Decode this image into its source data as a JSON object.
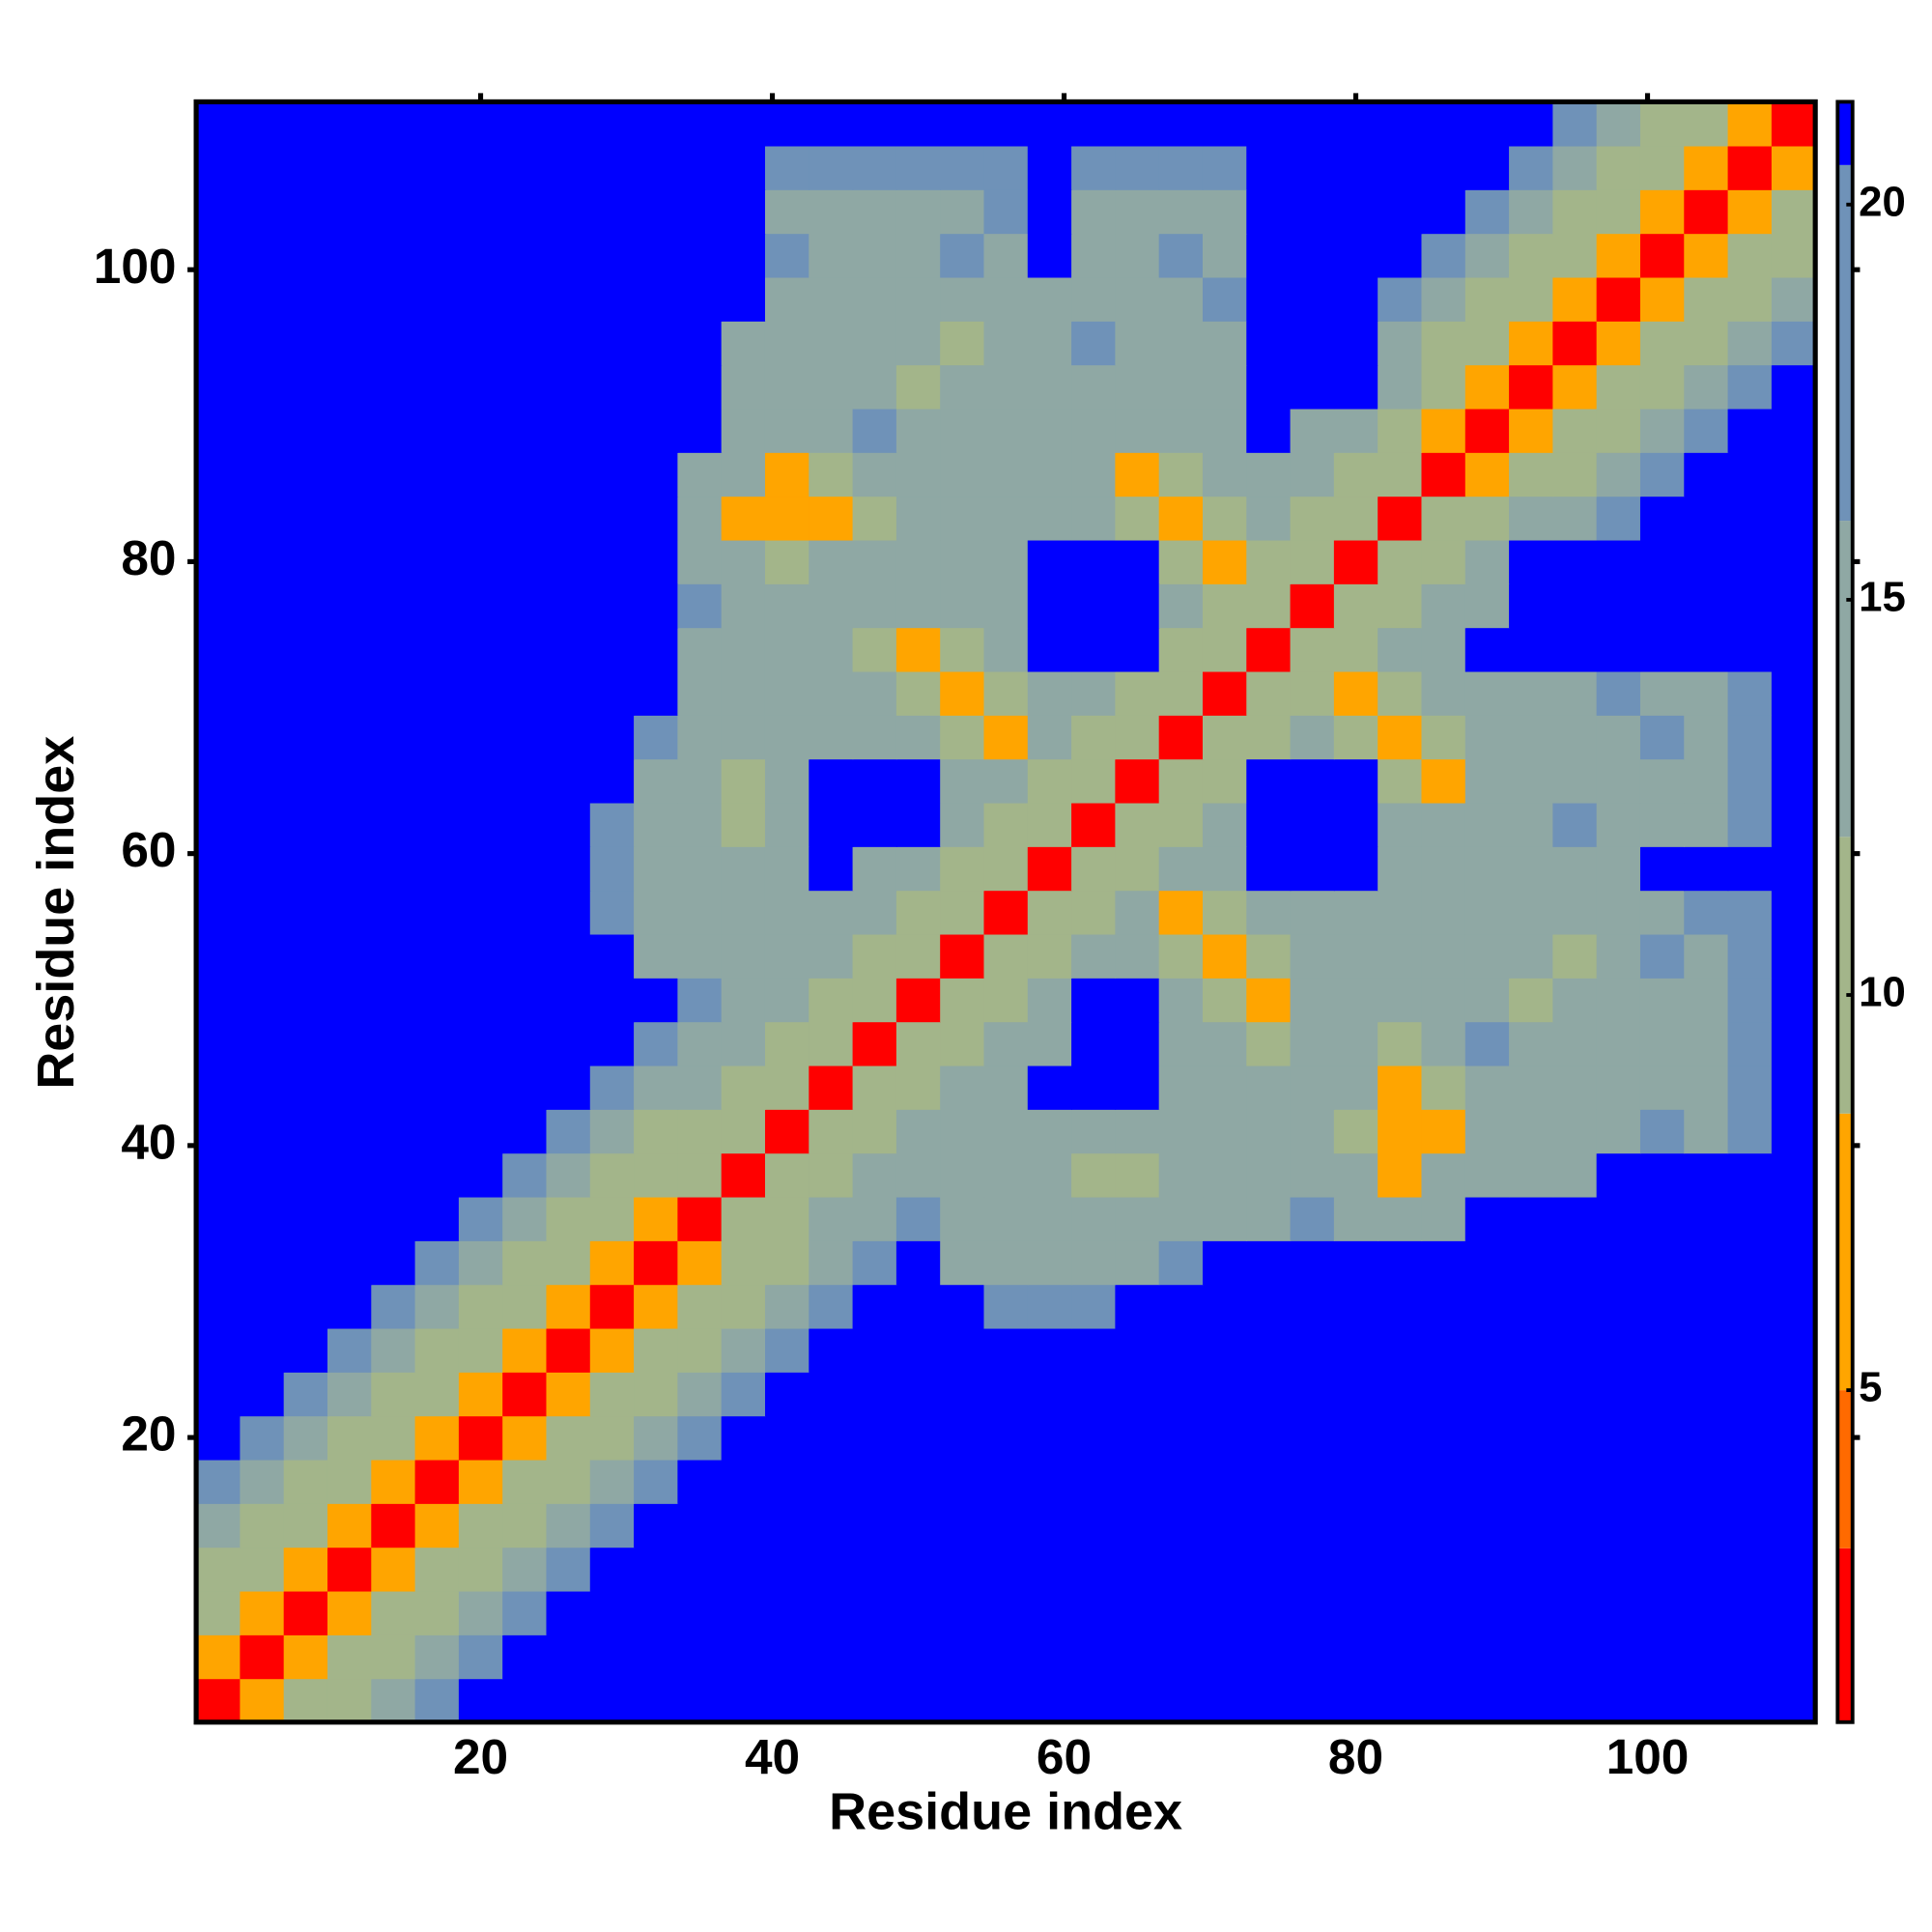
{
  "chart_data": {
    "type": "heatmap",
    "xlabel": "Residue index",
    "ylabel": "Residue index",
    "xlim": [
      0.5,
      111.5
    ],
    "ylim": [
      0.5,
      111.5
    ],
    "xticks": [
      20,
      40,
      60,
      80,
      100
    ],
    "yticks": [
      20,
      40,
      60,
      80,
      100
    ],
    "zlim": [
      0.8,
      21.3
    ],
    "zticks": [
      5,
      10,
      15,
      20
    ],
    "colorscale": [
      {
        "to": 3,
        "color": "#ff0000"
      },
      {
        "to": 5,
        "color": "#ff6a00"
      },
      {
        "to": 8.5,
        "color": "#ffa500"
      },
      {
        "to": 12,
        "color": "#a3b58a"
      },
      {
        "to": 16,
        "color": "#8fa8a4"
      },
      {
        "to": 20.5,
        "color": "#6f92b8"
      },
      {
        "to": 21.3,
        "color": "#0000ff"
      }
    ],
    "x": [
      2,
      5,
      8,
      11,
      14,
      17,
      20,
      23,
      26,
      29,
      32,
      35,
      38,
      41,
      44,
      47,
      50,
      53,
      56,
      59,
      62,
      65,
      68,
      71,
      74,
      77,
      80,
      83,
      86,
      89,
      92,
      95,
      98,
      101,
      104,
      107,
      110
    ],
    "y": [
      2,
      5,
      8,
      11,
      14,
      17,
      20,
      23,
      26,
      29,
      32,
      35,
      38,
      41,
      44,
      47,
      50,
      53,
      56,
      59,
      62,
      65,
      68,
      71,
      74,
      77,
      80,
      83,
      86,
      89,
      92,
      95,
      98,
      101,
      104,
      107,
      110
    ],
    "z": [
      [
        2,
        6,
        10,
        12,
        15,
        18,
        21,
        21,
        21,
        21,
        21,
        21,
        21,
        21,
        21,
        21,
        21,
        21,
        21,
        21,
        21,
        21,
        21,
        21,
        21,
        21,
        21,
        21,
        21,
        21,
        21,
        21,
        21,
        21,
        21,
        21,
        21
      ],
      [
        6,
        2,
        6,
        10,
        12,
        15,
        18,
        21,
        21,
        21,
        21,
        21,
        21,
        21,
        21,
        21,
        21,
        21,
        21,
        21,
        21,
        21,
        21,
        21,
        21,
        21,
        21,
        21,
        21,
        21,
        21,
        21,
        21,
        21,
        21,
        21,
        21
      ],
      [
        10,
        6,
        2,
        6,
        10,
        12,
        15,
        18,
        21,
        21,
        21,
        21,
        21,
        21,
        21,
        21,
        21,
        21,
        21,
        21,
        21,
        21,
        21,
        21,
        21,
        21,
        21,
        21,
        21,
        21,
        21,
        21,
        21,
        21,
        21,
        21,
        21
      ],
      [
        12,
        10,
        6,
        2,
        6,
        10,
        12,
        15,
        18,
        21,
        21,
        21,
        21,
        21,
        21,
        21,
        21,
        21,
        21,
        21,
        21,
        21,
        21,
        21,
        21,
        21,
        21,
        21,
        21,
        21,
        21,
        21,
        21,
        21,
        21,
        21,
        21
      ],
      [
        15,
        12,
        10,
        6,
        2,
        6,
        10,
        12,
        15,
        18,
        21,
        21,
        21,
        21,
        21,
        21,
        21,
        21,
        21,
        21,
        21,
        21,
        21,
        21,
        21,
        21,
        21,
        21,
        21,
        21,
        21,
        21,
        21,
        21,
        21,
        21,
        21
      ],
      [
        18,
        15,
        12,
        10,
        6,
        2,
        6,
        10,
        12,
        15,
        18,
        21,
        21,
        21,
        21,
        21,
        21,
        21,
        21,
        21,
        21,
        21,
        21,
        21,
        21,
        21,
        21,
        21,
        21,
        21,
        21,
        21,
        21,
        21,
        21,
        21,
        21
      ],
      [
        21,
        18,
        15,
        12,
        10,
        6,
        2,
        6,
        10,
        12,
        15,
        18,
        21,
        21,
        21,
        21,
        21,
        21,
        21,
        21,
        21,
        21,
        21,
        21,
        21,
        21,
        21,
        21,
        21,
        21,
        21,
        21,
        21,
        21,
        21,
        21,
        21
      ],
      [
        21,
        21,
        18,
        15,
        12,
        10,
        6,
        2,
        6,
        10,
        12,
        15,
        18,
        21,
        21,
        21,
        21,
        21,
        21,
        21,
        21,
        21,
        21,
        21,
        21,
        21,
        21,
        21,
        21,
        21,
        21,
        21,
        21,
        21,
        21,
        21,
        21
      ],
      [
        21,
        21,
        21,
        18,
        15,
        12,
        10,
        6,
        2,
        6,
        10,
        12,
        15,
        18,
        21,
        21,
        21,
        21,
        21,
        21,
        21,
        21,
        21,
        21,
        21,
        21,
        21,
        21,
        21,
        21,
        21,
        21,
        21,
        21,
        21,
        21,
        21
      ],
      [
        21,
        21,
        21,
        21,
        18,
        15,
        12,
        10,
        6,
        2,
        6,
        10,
        12,
        15,
        18,
        21,
        21,
        21,
        18,
        18,
        18,
        21,
        21,
        21,
        21,
        21,
        21,
        21,
        21,
        21,
        21,
        21,
        21,
        21,
        21,
        21,
        21
      ],
      [
        21,
        21,
        21,
        21,
        21,
        18,
        15,
        12,
        10,
        6,
        2,
        6,
        10,
        12,
        15,
        18,
        21,
        15,
        15,
        15,
        15,
        15,
        18,
        21,
        21,
        21,
        21,
        21,
        21,
        21,
        21,
        21,
        21,
        21,
        21,
        21,
        21
      ],
      [
        21,
        21,
        21,
        21,
        21,
        21,
        18,
        15,
        12,
        10,
        6,
        2,
        9,
        12,
        14,
        16,
        18,
        15,
        15,
        15,
        15,
        15,
        15,
        15,
        15,
        18,
        15,
        15,
        15,
        21,
        21,
        21,
        21,
        21,
        21,
        21,
        21
      ],
      [
        21,
        21,
        21,
        21,
        21,
        21,
        21,
        18,
        15,
        12,
        10,
        9,
        2,
        9,
        12,
        14,
        16,
        15,
        15,
        15,
        9,
        9,
        15,
        15,
        15,
        15,
        15,
        7,
        15,
        15,
        15,
        15,
        21,
        21,
        21,
        21,
        21
      ],
      [
        21,
        21,
        21,
        21,
        21,
        21,
        21,
        21,
        18,
        15,
        12,
        12,
        9,
        2,
        9,
        12,
        14,
        15,
        15,
        15,
        15,
        15,
        15,
        15,
        15,
        15,
        11,
        7,
        7,
        15,
        15,
        15,
        15,
        18,
        15,
        18,
        21
      ],
      [
        21,
        21,
        21,
        21,
        21,
        21,
        21,
        21,
        21,
        18,
        15,
        14,
        12,
        9,
        2,
        9,
        12,
        14,
        15,
        21,
        21,
        21,
        15,
        15,
        15,
        15,
        15,
        7,
        11,
        15,
        15,
        15,
        15,
        15,
        15,
        18,
        21
      ],
      [
        21,
        21,
        21,
        21,
        21,
        21,
        21,
        21,
        21,
        21,
        18,
        16,
        14,
        12,
        9,
        2,
        9,
        12,
        14,
        15,
        21,
        21,
        15,
        15,
        11,
        15,
        15,
        11,
        15,
        18,
        15,
        15,
        15,
        15,
        15,
        18,
        21
      ],
      [
        21,
        21,
        21,
        21,
        21,
        21,
        21,
        21,
        21,
        21,
        21,
        18,
        16,
        14,
        12,
        9,
        2,
        9,
        12,
        14,
        21,
        21,
        15,
        11,
        7,
        15,
        15,
        15,
        15,
        15,
        9,
        15,
        15,
        15,
        15,
        18,
        21
      ],
      [
        21,
        21,
        21,
        21,
        21,
        21,
        21,
        21,
        21,
        21,
        15,
        15,
        15,
        15,
        14,
        12,
        9,
        2,
        9,
        12,
        14,
        15,
        11,
        7,
        11,
        15,
        15,
        15,
        15,
        15,
        15,
        9,
        15,
        18,
        15,
        18,
        21
      ],
      [
        21,
        21,
        21,
        21,
        21,
        21,
        21,
        21,
        21,
        18,
        15,
        15,
        15,
        15,
        15,
        14,
        12,
        9,
        2,
        9,
        12,
        14,
        7,
        11,
        15,
        15,
        15,
        15,
        15,
        15,
        15,
        15,
        15,
        15,
        18,
        18,
        21
      ],
      [
        21,
        21,
        21,
        21,
        21,
        21,
        21,
        21,
        21,
        18,
        15,
        15,
        15,
        15,
        21,
        15,
        14,
        12,
        9,
        2,
        9,
        12,
        14,
        15,
        21,
        21,
        21,
        15,
        15,
        15,
        15,
        15,
        15,
        21,
        21,
        21,
        21
      ],
      [
        21,
        21,
        21,
        21,
        21,
        21,
        21,
        21,
        21,
        18,
        15,
        15,
        9,
        15,
        21,
        21,
        21,
        14,
        12,
        9,
        2,
        9,
        12,
        14,
        21,
        21,
        21,
        15,
        15,
        15,
        15,
        18,
        15,
        15,
        15,
        18,
        21
      ],
      [
        21,
        21,
        21,
        21,
        21,
        21,
        21,
        21,
        21,
        21,
        15,
        15,
        9,
        15,
        21,
        21,
        21,
        15,
        14,
        12,
        9,
        2,
        9,
        12,
        21,
        21,
        21,
        11,
        7,
        15,
        15,
        15,
        15,
        15,
        15,
        18,
        21
      ],
      [
        21,
        21,
        21,
        21,
        21,
        21,
        21,
        21,
        21,
        21,
        18,
        15,
        15,
        15,
        15,
        15,
        15,
        11,
        7,
        14,
        12,
        9,
        2,
        9,
        12,
        14,
        11,
        7,
        11,
        15,
        15,
        15,
        15,
        18,
        15,
        18,
        21
      ],
      [
        21,
        21,
        21,
        21,
        21,
        21,
        21,
        21,
        21,
        21,
        21,
        15,
        15,
        15,
        15,
        15,
        11,
        7,
        11,
        15,
        14,
        12,
        9,
        2,
        9,
        12,
        7,
        11,
        15,
        15,
        15,
        15,
        18,
        15,
        15,
        18,
        21
      ],
      [
        21,
        21,
        21,
        21,
        21,
        21,
        21,
        21,
        21,
        21,
        21,
        15,
        15,
        15,
        15,
        11,
        7,
        11,
        15,
        21,
        21,
        21,
        12,
        9,
        2,
        9,
        12,
        14,
        15,
        21,
        21,
        21,
        21,
        21,
        21,
        21,
        21
      ],
      [
        21,
        21,
        21,
        21,
        21,
        21,
        21,
        21,
        21,
        21,
        21,
        18,
        15,
        15,
        15,
        15,
        15,
        15,
        15,
        21,
        21,
        21,
        14,
        12,
        9,
        2,
        9,
        12,
        14,
        16,
        21,
        21,
        21,
        21,
        21,
        21,
        21
      ],
      [
        21,
        21,
        21,
        21,
        21,
        21,
        21,
        21,
        21,
        21,
        21,
        15,
        15,
        11,
        15,
        15,
        15,
        15,
        15,
        21,
        21,
        21,
        11,
        7,
        12,
        9,
        2,
        9,
        12,
        14,
        21,
        21,
        21,
        21,
        21,
        21,
        21
      ],
      [
        21,
        21,
        21,
        21,
        21,
        21,
        21,
        21,
        21,
        21,
        21,
        15,
        7,
        7,
        7,
        11,
        15,
        15,
        15,
        15,
        15,
        11,
        7,
        11,
        14,
        12,
        9,
        2,
        9,
        12,
        14,
        16,
        18,
        21,
        21,
        21,
        21
      ],
      [
        21,
        21,
        21,
        21,
        21,
        21,
        21,
        21,
        21,
        21,
        21,
        15,
        15,
        7,
        11,
        15,
        15,
        15,
        15,
        15,
        15,
        7,
        11,
        15,
        15,
        14,
        12,
        9,
        2,
        6,
        10,
        12,
        15,
        18,
        21,
        21,
        21
      ],
      [
        21,
        21,
        21,
        21,
        21,
        21,
        21,
        21,
        21,
        21,
        21,
        21,
        15,
        15,
        15,
        18,
        15,
        15,
        15,
        15,
        15,
        15,
        15,
        15,
        21,
        16,
        14,
        12,
        6,
        2,
        6,
        10,
        12,
        15,
        18,
        21,
        21
      ],
      [
        21,
        21,
        21,
        21,
        21,
        21,
        21,
        21,
        21,
        21,
        21,
        21,
        15,
        15,
        15,
        15,
        9,
        15,
        15,
        15,
        15,
        15,
        15,
        15,
        21,
        21,
        21,
        14,
        10,
        6,
        2,
        6,
        10,
        12,
        15,
        18,
        21
      ],
      [
        21,
        21,
        21,
        21,
        21,
        21,
        21,
        21,
        21,
        21,
        21,
        21,
        15,
        15,
        15,
        15,
        15,
        9,
        15,
        15,
        18,
        15,
        15,
        15,
        21,
        21,
        21,
        16,
        12,
        10,
        6,
        2,
        6,
        10,
        12,
        15,
        18
      ],
      [
        21,
        21,
        21,
        21,
        21,
        21,
        21,
        21,
        21,
        21,
        21,
        21,
        21,
        15,
        15,
        15,
        15,
        15,
        15,
        15,
        15,
        15,
        15,
        18,
        21,
        21,
        21,
        18,
        15,
        12,
        10,
        6,
        2,
        6,
        10,
        12,
        15
      ],
      [
        21,
        21,
        21,
        21,
        21,
        21,
        21,
        21,
        21,
        21,
        21,
        21,
        21,
        18,
        15,
        15,
        15,
        18,
        15,
        21,
        15,
        15,
        18,
        15,
        21,
        21,
        21,
        21,
        18,
        15,
        12,
        10,
        6,
        2,
        6,
        10,
        12
      ],
      [
        21,
        21,
        21,
        21,
        21,
        21,
        21,
        21,
        21,
        21,
        21,
        21,
        21,
        15,
        15,
        15,
        15,
        15,
        18,
        21,
        15,
        15,
        15,
        15,
        21,
        21,
        21,
        21,
        21,
        18,
        15,
        12,
        10,
        6,
        2,
        6,
        10
      ],
      [
        21,
        21,
        21,
        21,
        21,
        21,
        21,
        21,
        21,
        21,
        21,
        21,
        21,
        18,
        18,
        18,
        18,
        18,
        18,
        21,
        18,
        18,
        18,
        18,
        21,
        21,
        21,
        21,
        21,
        21,
        18,
        15,
        12,
        10,
        6,
        2,
        6
      ],
      [
        21,
        21,
        21,
        21,
        21,
        21,
        21,
        21,
        21,
        21,
        21,
        21,
        21,
        21,
        21,
        21,
        21,
        21,
        21,
        21,
        21,
        21,
        21,
        21,
        21,
        21,
        21,
        21,
        21,
        21,
        21,
        18,
        15,
        12,
        10,
        6,
        2
      ]
    ]
  }
}
